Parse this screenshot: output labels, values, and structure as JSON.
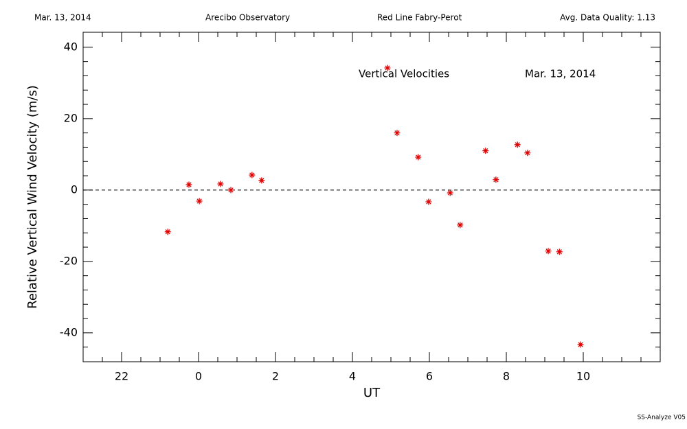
{
  "chart_data": {
    "type": "scatter",
    "header": [
      "Mar. 13, 2014",
      "Arecibo Observatory",
      "Red Line Fabry-Perot",
      "Avg. Data Quality: 1.13"
    ],
    "annotations": [
      "Vertical Velocities",
      "Mar. 13, 2014"
    ],
    "footer": "SS-Analyze V05",
    "x_label": "UT",
    "y_label": "Relative Vertical Wind Velocity (m/s)",
    "color": "#e00000",
    "reference_line": 0,
    "x": [
      -0.8,
      -0.25,
      0.02,
      0.57,
      0.84,
      1.39,
      1.64,
      4.91,
      5.16,
      5.71,
      5.98,
      6.54,
      6.8,
      7.46,
      7.73,
      8.29,
      8.55,
      9.09,
      9.38,
      9.93
    ],
    "values": [
      -11.7,
      1.5,
      -3.1,
      1.7,
      0,
      4.2,
      2.7,
      34.2,
      16.0,
      9.2,
      -3.3,
      -0.8,
      -9.8,
      11.0,
      2.9,
      12.7,
      10.4,
      -17.1,
      -17.3,
      -43.3
    ],
    "xlim": [
      -3,
      12
    ],
    "ylim": [
      -48.1,
      44.2
    ],
    "xticks": [
      {
        "value": -2,
        "label": "22"
      },
      0,
      2,
      4,
      6,
      8,
      10
    ],
    "yticks": [
      -40,
      -20,
      0,
      20,
      40
    ],
    "xminorticks": [
      -2.5,
      -1.5,
      -1,
      -0.5,
      0.5,
      1,
      1.5,
      2.5,
      3,
      3.5,
      4.5,
      5,
      5.5,
      6.5,
      7,
      7.5,
      8.5,
      9,
      9.5,
      10.5,
      11,
      11.5
    ],
    "yminorticks": [
      -44,
      -36,
      -32,
      -28,
      -24,
      -16,
      -12,
      -8,
      -4,
      4,
      8,
      12,
      16,
      24,
      28,
      32,
      36
    ]
  }
}
